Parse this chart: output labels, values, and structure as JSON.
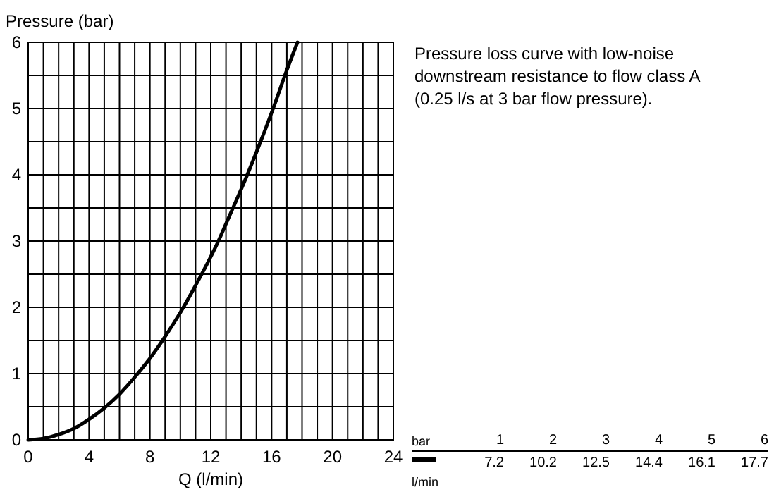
{
  "chart_data": [
    {
      "type": "line",
      "xlabel": "Q (l/min)",
      "ylabel": "Pressure (bar)",
      "x": [
        0,
        1,
        2,
        3,
        4,
        5,
        6,
        7.2,
        8,
        9,
        10.2,
        11,
        12.5,
        13,
        14.4,
        15,
        16.1,
        17,
        17.7
      ],
      "series": [
        {
          "color": "#000000",
          "values": [
            0,
            0.02,
            0.08,
            0.17,
            0.31,
            0.48,
            0.69,
            1,
            1.23,
            1.56,
            2,
            2.33,
            3,
            3.26,
            4,
            4.34,
            5,
            5.58,
            6
          ]
        }
      ],
      "xlim": [
        0,
        24
      ],
      "xticks": [
        0,
        {
          "value": 1,
          "label": null
        },
        {
          "value": 2,
          "label": null
        },
        {
          "value": 3,
          "label": null
        },
        4,
        {
          "value": 5,
          "label": null
        },
        {
          "value": 6,
          "label": null
        },
        {
          "value": 7,
          "label": null
        },
        8,
        {
          "value": 9,
          "label": null
        },
        {
          "value": 10,
          "label": null
        },
        {
          "value": 11,
          "label": null
        },
        12,
        {
          "value": 13,
          "label": null
        },
        {
          "value": 14,
          "label": null
        },
        {
          "value": 15,
          "label": null
        },
        16,
        {
          "value": 17,
          "label": null
        },
        {
          "value": 18,
          "label": null
        },
        {
          "value": 19,
          "label": null
        },
        20,
        {
          "value": 21,
          "label": null
        },
        {
          "value": 22,
          "label": null
        },
        {
          "value": 23,
          "label": null
        },
        24
      ],
      "ylim": [
        0,
        6
      ],
      "yticks": [
        0,
        {
          "value": 0.5,
          "label": null
        },
        1,
        {
          "value": 1.5,
          "label": null
        },
        2,
        {
          "value": 2.5,
          "label": null
        },
        3,
        {
          "value": 3.5,
          "label": null
        },
        4,
        {
          "value": 4.5,
          "label": null
        },
        5,
        {
          "value": 5.5,
          "label": null
        },
        6
      ],
      "grid": true,
      "marker": "none",
      "line_style": "solid",
      "annotations": [
        "Pressure loss curve with low-noise downstream resistance to flow class A  (0.25 l/s at 3 bar flow pressure).",
        "bar",
        "1",
        "2",
        "3",
        "4",
        "5",
        "6",
        "l/min",
        "7.2",
        "10.2",
        "12.5",
        "14.4",
        "16.1",
        "17.7"
      ]
    }
  ]
}
